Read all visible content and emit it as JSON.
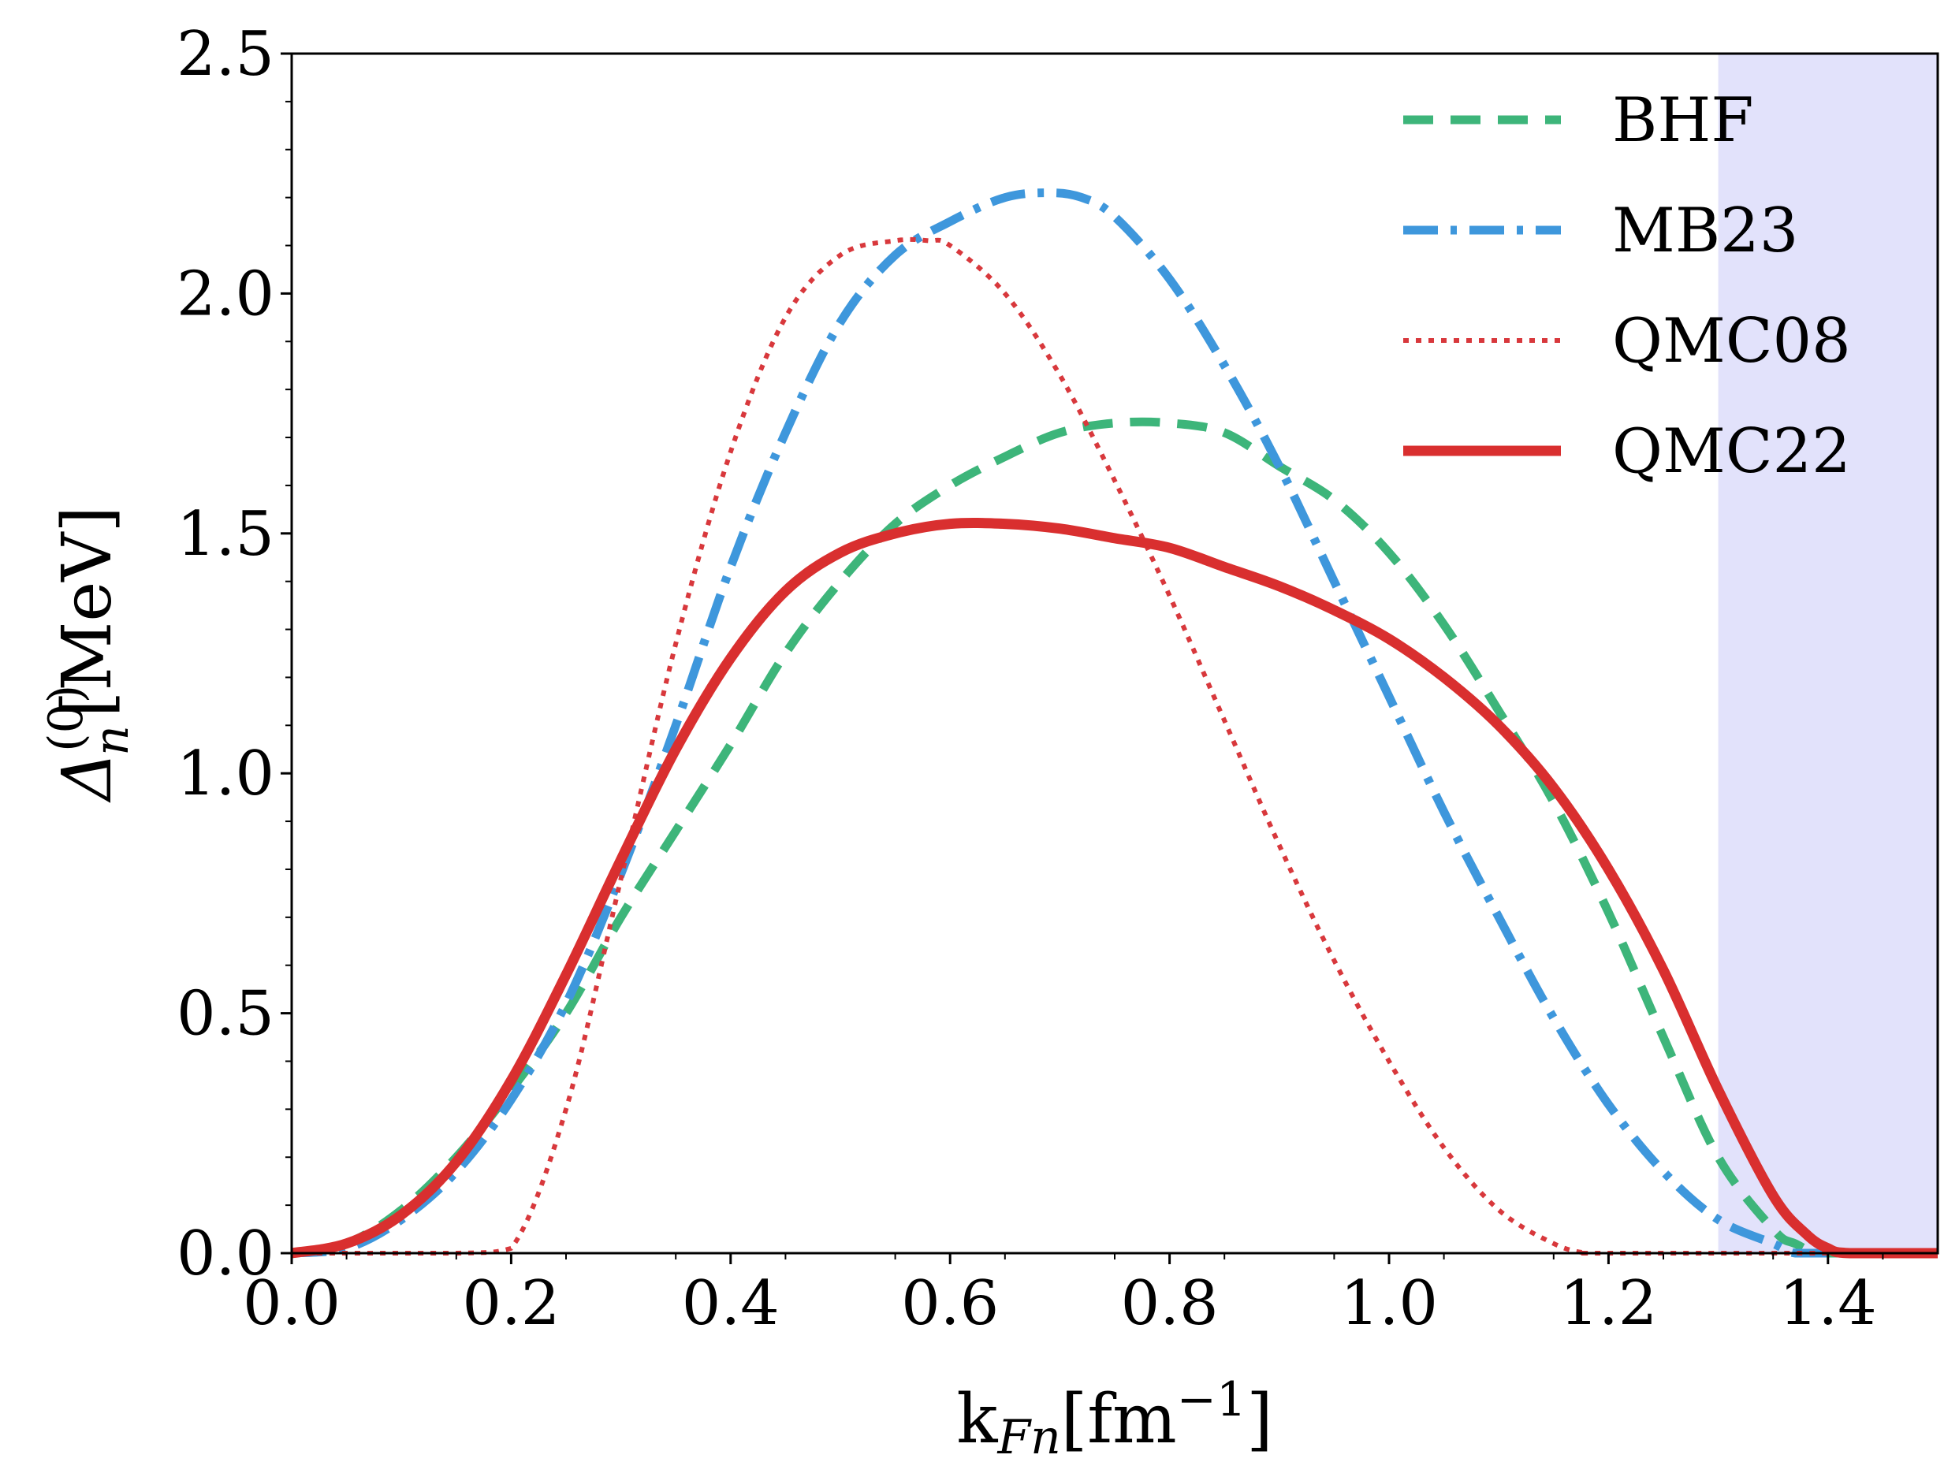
{
  "chart_data": {
    "type": "line",
    "title": "",
    "xlabel": "k",
    "xlabel_sub": "Fn",
    "xlabel_unit": "[fm",
    "xlabel_unit_sup": "−1",
    "xlabel_unit_end": "]",
    "ylabel": "Δ",
    "ylabel_sub": "n",
    "ylabel_sup": "(0)",
    "ylabel_unit": "[MeV]",
    "xlim": [
      0.0,
      1.5
    ],
    "ylim": [
      0.0,
      2.5
    ],
    "x_ticks": [
      "0.0",
      "0.2",
      "0.4",
      "0.6",
      "0.8",
      "1.0",
      "1.2",
      "1.4"
    ],
    "y_ticks": [
      "0.0",
      "0.5",
      "1.0",
      "1.5",
      "2.0",
      "2.5"
    ],
    "shaded_region": {
      "x_from": 1.3,
      "x_to": 1.5,
      "color": "#e2e2fb"
    },
    "grid": false,
    "legend_position": "top-right",
    "series": [
      {
        "name": "BHF",
        "color": "#3db57a",
        "style": "dashed",
        "x": [
          0.0,
          0.05,
          0.1,
          0.15,
          0.2,
          0.25,
          0.3,
          0.35,
          0.4,
          0.45,
          0.5,
          0.55,
          0.6,
          0.65,
          0.7,
          0.75,
          0.8,
          0.85,
          0.9,
          0.95,
          1.0,
          1.05,
          1.1,
          1.15,
          1.2,
          1.25,
          1.3,
          1.35,
          1.37,
          1.4,
          1.5
        ],
        "y": [
          0.0,
          0.02,
          0.09,
          0.2,
          0.34,
          0.5,
          0.7,
          0.88,
          1.06,
          1.25,
          1.4,
          1.52,
          1.6,
          1.66,
          1.71,
          1.73,
          1.73,
          1.71,
          1.64,
          1.57,
          1.46,
          1.31,
          1.13,
          0.94,
          0.71,
          0.45,
          0.2,
          0.05,
          0.02,
          0.0,
          0.0
        ]
      },
      {
        "name": "MB23",
        "color": "#3e97dc",
        "style": "dashdot",
        "x": [
          0.0,
          0.05,
          0.1,
          0.15,
          0.2,
          0.25,
          0.3,
          0.35,
          0.4,
          0.45,
          0.5,
          0.55,
          0.6,
          0.65,
          0.69,
          0.72,
          0.75,
          0.8,
          0.85,
          0.9,
          0.95,
          1.0,
          1.05,
          1.1,
          1.15,
          1.2,
          1.25,
          1.3,
          1.35,
          1.37,
          1.4,
          1.5
        ],
        "y": [
          0.0,
          0.01,
          0.07,
          0.17,
          0.32,
          0.52,
          0.79,
          1.1,
          1.43,
          1.71,
          1.94,
          2.08,
          2.15,
          2.2,
          2.21,
          2.2,
          2.16,
          2.03,
          1.85,
          1.64,
          1.4,
          1.16,
          0.92,
          0.7,
          0.49,
          0.31,
          0.17,
          0.07,
          0.02,
          0.0,
          0.0,
          0.0
        ]
      },
      {
        "name": "QMC08",
        "color": "#d8383c",
        "style": "dotted",
        "x": [
          0.0,
          0.15,
          0.2,
          0.25,
          0.3,
          0.35,
          0.4,
          0.45,
          0.5,
          0.55,
          0.58,
          0.6,
          0.65,
          0.7,
          0.75,
          0.8,
          0.85,
          0.9,
          0.95,
          1.0,
          1.05,
          1.1,
          1.15,
          1.18,
          1.2,
          1.5
        ],
        "y": [
          0.0,
          0.0,
          0.01,
          0.3,
          0.78,
          1.27,
          1.67,
          1.95,
          2.08,
          2.11,
          2.11,
          2.1,
          2.0,
          1.83,
          1.61,
          1.37,
          1.11,
          0.85,
          0.61,
          0.4,
          0.22,
          0.09,
          0.02,
          0.0,
          0.0,
          0.0
        ]
      },
      {
        "name": "QMC22",
        "color": "#d92f2f",
        "style": "solid",
        "x": [
          0.0,
          0.05,
          0.1,
          0.15,
          0.2,
          0.25,
          0.3,
          0.35,
          0.4,
          0.45,
          0.5,
          0.55,
          0.6,
          0.65,
          0.7,
          0.75,
          0.8,
          0.85,
          0.9,
          0.95,
          1.0,
          1.05,
          1.1,
          1.15,
          1.2,
          1.25,
          1.3,
          1.35,
          1.38,
          1.4,
          1.42,
          1.5
        ],
        "y": [
          0.0,
          0.02,
          0.08,
          0.19,
          0.36,
          0.58,
          0.82,
          1.05,
          1.24,
          1.38,
          1.46,
          1.5,
          1.52,
          1.52,
          1.51,
          1.49,
          1.47,
          1.43,
          1.39,
          1.34,
          1.28,
          1.2,
          1.1,
          0.97,
          0.8,
          0.59,
          0.34,
          0.12,
          0.04,
          0.01,
          0.0,
          0.0
        ]
      }
    ]
  }
}
